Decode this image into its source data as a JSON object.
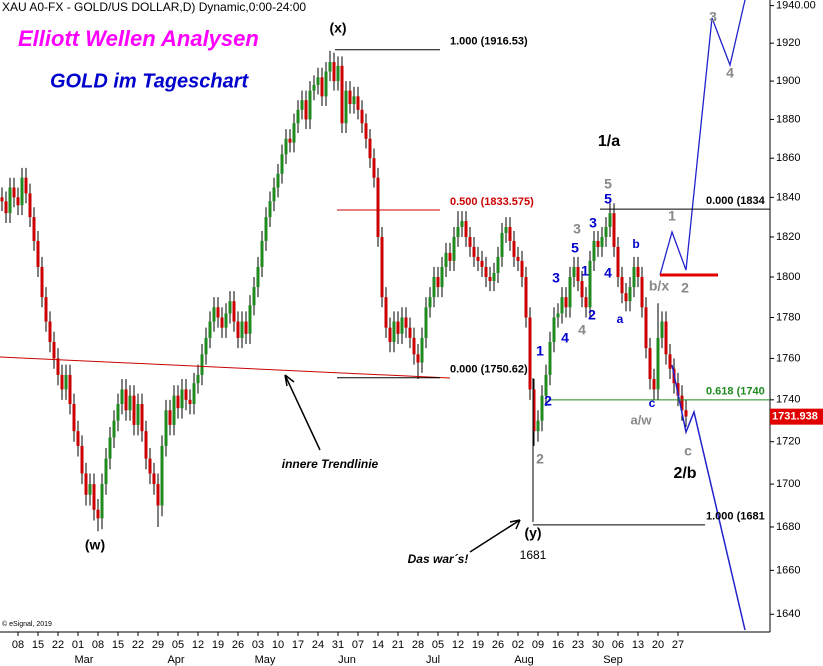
{
  "chart_data": {
    "type": "candlestick",
    "header": "XAU A0-FX - GOLD/US DOLLAR,D) Dynamic,0:00-24:00",
    "title": "Elliott Wellen Analysen",
    "subtitle": "GOLD im Tageschart",
    "copyright": "© eSignal, 2019",
    "log_scale": true,
    "ylim": [
      1632,
      1943
    ],
    "yticks": [
      1640,
      1660,
      1680,
      1700,
      1720,
      1740,
      1760,
      1780,
      1800,
      1820,
      1840,
      1860,
      1880,
      1900,
      1920,
      {
        "value": 1940,
        "label": "1940.00"
      }
    ],
    "x_ticks": [
      "08",
      "15",
      "22",
      "01",
      "08",
      "15",
      "22",
      "29",
      "05",
      "12",
      "19",
      "26",
      "03",
      "10",
      "17",
      "24",
      "31",
      "07",
      "14",
      "21",
      "28",
      "05",
      "12",
      "19",
      "26",
      "02",
      "09",
      "16",
      "23",
      "30",
      "06",
      "13",
      "20",
      "27"
    ],
    "months": [
      "Mar",
      "Apr",
      "May",
      "Jun",
      "Jul",
      "Aug",
      "Sep"
    ],
    "up_color": "#1f8a1f",
    "down_color": "#cc0000",
    "last_price": 1731.938,
    "fib_levels": [
      {
        "label": "1.000 (1916.53)",
        "value": 1916.53,
        "color": "#000000"
      },
      {
        "label": "0.500 (1833.575)",
        "value": 1833.575,
        "color": "#cc0000"
      },
      {
        "label": "0.000 (1750.62)",
        "value": 1750.62,
        "color": "#000000"
      },
      {
        "label": "0.000 (1834",
        "value": 1834,
        "color": "#000000"
      },
      {
        "label": "0.618 (1740",
        "value": 1740,
        "color": "#1f8a1f"
      },
      {
        "label": "1.000 (1681",
        "value": 1681,
        "color": "#000000"
      }
    ],
    "annotations": [
      {
        "text": "(x)",
        "color": "#000000"
      },
      {
        "text": "(w)",
        "color": "#000000"
      },
      {
        "text": "(y)",
        "color": "#000000"
      },
      {
        "text": "1681",
        "color": "#000000"
      },
      {
        "text": "1/a",
        "color": "#000000"
      },
      {
        "text": "5",
        "color": "#888888"
      },
      {
        "text": "5",
        "color": "#0000cc"
      },
      {
        "text": "3",
        "color": "#888888"
      },
      {
        "text": "3",
        "color": "#0000cc"
      },
      {
        "text": "5",
        "color": "#0000cc"
      },
      {
        "text": "1",
        "color": "#0000cc"
      },
      {
        "text": "3",
        "color": "#0000cc"
      },
      {
        "text": "4",
        "color": "#0000cc"
      },
      {
        "text": "b",
        "color": "#0000cc"
      },
      {
        "text": "4",
        "color": "#888888"
      },
      {
        "text": "4",
        "color": "#0000cc"
      },
      {
        "text": "2",
        "color": "#0000cc"
      },
      {
        "text": "a",
        "color": "#0000cc"
      },
      {
        "text": "1",
        "color": "#0000cc"
      },
      {
        "text": "2",
        "color": "#0000cc"
      },
      {
        "text": "2",
        "color": "#888888"
      },
      {
        "text": "b/x",
        "color": "#888888"
      },
      {
        "text": "2",
        "color": "#888888"
      },
      {
        "text": "1",
        "color": "#888888"
      },
      {
        "text": "c",
        "color": "#0000cc"
      },
      {
        "text": "a/w",
        "color": "#888888"
      },
      {
        "text": "c",
        "color": "#888888"
      },
      {
        "text": "2/b",
        "color": "#000000"
      },
      {
        "text": "3",
        "color": "#888888"
      },
      {
        "text": "4",
        "color": "#888888"
      },
      {
        "text": "innere Trendlinie",
        "color": "#000000"
      },
      {
        "text": "Das war´s!",
        "color": "#000000"
      }
    ],
    "candles": [
      [
        1840,
        1845,
        1833,
        1838
      ],
      [
        1838,
        1843,
        1827,
        1832
      ],
      [
        1832,
        1850,
        1827,
        1845
      ],
      [
        1845,
        1850,
        1835,
        1840
      ],
      [
        1840,
        1845,
        1831,
        1836
      ],
      [
        1836,
        1855,
        1831,
        1850
      ],
      [
        1850,
        1855,
        1837,
        1842
      ],
      [
        1842,
        1847,
        1825,
        1830
      ],
      [
        1830,
        1835,
        1813,
        1818
      ],
      [
        1818,
        1823,
        1800,
        1805
      ],
      [
        1805,
        1810,
        1785,
        1790
      ],
      [
        1790,
        1795,
        1773,
        1778
      ],
      [
        1778,
        1783,
        1763,
        1768
      ],
      [
        1768,
        1773,
        1755,
        1760
      ],
      [
        1760,
        1765,
        1747,
        1752
      ],
      [
        1752,
        1757,
        1740,
        1745
      ],
      [
        1745,
        1757,
        1740,
        1752
      ],
      [
        1752,
        1757,
        1733,
        1738
      ],
      [
        1738,
        1743,
        1720,
        1725
      ],
      [
        1725,
        1730,
        1713,
        1718
      ],
      [
        1718,
        1723,
        1700,
        1705
      ],
      [
        1705,
        1710,
        1690,
        1695
      ],
      [
        1695,
        1705,
        1690,
        1700
      ],
      [
        1700,
        1705,
        1683,
        1688
      ],
      [
        1688,
        1693,
        1678,
        1684
      ],
      [
        1684,
        1705,
        1679,
        1700
      ],
      [
        1700,
        1717,
        1695,
        1712
      ],
      [
        1712,
        1727,
        1707,
        1722
      ],
      [
        1722,
        1735,
        1717,
        1730
      ],
      [
        1730,
        1743,
        1725,
        1738
      ],
      [
        1738,
        1750,
        1733,
        1745
      ],
      [
        1745,
        1750,
        1730,
        1735
      ],
      [
        1735,
        1747,
        1730,
        1742
      ],
      [
        1742,
        1747,
        1723,
        1728
      ],
      [
        1728,
        1743,
        1723,
        1738
      ],
      [
        1738,
        1743,
        1720,
        1725
      ],
      [
        1725,
        1730,
        1707,
        1712
      ],
      [
        1712,
        1717,
        1700,
        1705
      ],
      [
        1705,
        1710,
        1695,
        1700
      ],
      [
        1700,
        1705,
        1680,
        1690
      ],
      [
        1690,
        1723,
        1685,
        1718
      ],
      [
        1718,
        1740,
        1713,
        1735
      ],
      [
        1735,
        1740,
        1723,
        1728
      ],
      [
        1728,
        1747,
        1723,
        1742
      ],
      [
        1742,
        1747,
        1731,
        1736
      ],
      [
        1736,
        1750,
        1731,
        1745
      ],
      [
        1745,
        1750,
        1735,
        1740
      ],
      [
        1740,
        1745,
        1733,
        1738
      ],
      [
        1738,
        1753,
        1733,
        1748
      ],
      [
        1748,
        1757,
        1743,
        1752
      ],
      [
        1752,
        1767,
        1747,
        1762
      ],
      [
        1762,
        1775,
        1757,
        1770
      ],
      [
        1770,
        1783,
        1765,
        1778
      ],
      [
        1778,
        1790,
        1773,
        1785
      ],
      [
        1785,
        1790,
        1775,
        1780
      ],
      [
        1780,
        1785,
        1770,
        1775
      ],
      [
        1775,
        1787,
        1770,
        1782
      ],
      [
        1782,
        1793,
        1777,
        1788
      ],
      [
        1788,
        1793,
        1773,
        1778
      ],
      [
        1778,
        1783,
        1765,
        1770
      ],
      [
        1770,
        1783,
        1765,
        1778
      ],
      [
        1778,
        1783,
        1767,
        1772
      ],
      [
        1772,
        1791,
        1767,
        1786
      ],
      [
        1786,
        1800,
        1781,
        1795
      ],
      [
        1795,
        1810,
        1790,
        1805
      ],
      [
        1805,
        1823,
        1800,
        1818
      ],
      [
        1818,
        1835,
        1813,
        1830
      ],
      [
        1830,
        1843,
        1825,
        1838
      ],
      [
        1838,
        1850,
        1833,
        1845
      ],
      [
        1845,
        1857,
        1840,
        1852
      ],
      [
        1852,
        1867,
        1847,
        1862
      ],
      [
        1862,
        1875,
        1857,
        1870
      ],
      [
        1870,
        1875,
        1863,
        1868
      ],
      [
        1868,
        1883,
        1863,
        1878
      ],
      [
        1878,
        1890,
        1873,
        1885
      ],
      [
        1885,
        1895,
        1880,
        1890
      ],
      [
        1890,
        1895,
        1875,
        1880
      ],
      [
        1880,
        1900,
        1875,
        1895
      ],
      [
        1895,
        1903,
        1890,
        1898
      ],
      [
        1898,
        1907,
        1893,
        1902
      ],
      [
        1902,
        1907,
        1887,
        1892
      ],
      [
        1892,
        1910,
        1887,
        1905
      ],
      [
        1905,
        1916,
        1900,
        1910
      ],
      [
        1910,
        1915,
        1895,
        1900
      ],
      [
        1900,
        1913,
        1895,
        1908
      ],
      [
        1908,
        1913,
        1873,
        1878
      ],
      [
        1878,
        1900,
        1873,
        1895
      ],
      [
        1895,
        1900,
        1883,
        1888
      ],
      [
        1888,
        1897,
        1883,
        1892
      ],
      [
        1892,
        1897,
        1880,
        1885
      ],
      [
        1885,
        1890,
        1873,
        1878
      ],
      [
        1878,
        1883,
        1865,
        1870
      ],
      [
        1870,
        1875,
        1855,
        1860
      ],
      [
        1860,
        1865,
        1845,
        1850
      ],
      [
        1850,
        1855,
        1815,
        1820
      ],
      [
        1820,
        1825,
        1785,
        1790
      ],
      [
        1790,
        1795,
        1770,
        1775
      ],
      [
        1775,
        1780,
        1763,
        1768
      ],
      [
        1768,
        1783,
        1763,
        1778
      ],
      [
        1778,
        1783,
        1767,
        1772
      ],
      [
        1772,
        1785,
        1767,
        1780
      ],
      [
        1780,
        1785,
        1770,
        1775
      ],
      [
        1775,
        1780,
        1765,
        1770
      ],
      [
        1770,
        1775,
        1757,
        1762
      ],
      [
        1762,
        1767,
        1750,
        1758
      ],
      [
        1758,
        1775,
        1753,
        1770
      ],
      [
        1770,
        1790,
        1765,
        1785
      ],
      [
        1785,
        1795,
        1780,
        1790
      ],
      [
        1790,
        1805,
        1785,
        1800
      ],
      [
        1800,
        1805,
        1790,
        1795
      ],
      [
        1795,
        1810,
        1790,
        1805
      ],
      [
        1805,
        1817,
        1800,
        1812
      ],
      [
        1812,
        1817,
        1803,
        1808
      ],
      [
        1808,
        1825,
        1803,
        1820
      ],
      [
        1820,
        1833,
        1815,
        1825
      ],
      [
        1825,
        1833,
        1820,
        1828
      ],
      [
        1828,
        1833,
        1815,
        1820
      ],
      [
        1820,
        1825,
        1810,
        1815
      ],
      [
        1815,
        1820,
        1805,
        1810
      ],
      [
        1810,
        1815,
        1803,
        1808
      ],
      [
        1808,
        1813,
        1800,
        1805
      ],
      [
        1805,
        1810,
        1795,
        1800
      ],
      [
        1800,
        1805,
        1793,
        1798
      ],
      [
        1798,
        1807,
        1793,
        1802
      ],
      [
        1802,
        1815,
        1797,
        1810
      ],
      [
        1810,
        1827,
        1805,
        1822
      ],
      [
        1822,
        1830,
        1817,
        1825
      ],
      [
        1825,
        1830,
        1813,
        1818
      ],
      [
        1818,
        1823,
        1805,
        1810
      ],
      [
        1810,
        1815,
        1803,
        1808
      ],
      [
        1808,
        1813,
        1795,
        1800
      ],
      [
        1800,
        1805,
        1775,
        1780
      ],
      [
        1780,
        1785,
        1740,
        1745
      ],
      [
        1745,
        1750,
        1718,
        1725
      ],
      [
        1725,
        1735,
        1720,
        1730
      ],
      [
        1730,
        1747,
        1725,
        1742
      ],
      [
        1742,
        1757,
        1737,
        1752
      ],
      [
        1752,
        1773,
        1747,
        1768
      ],
      [
        1768,
        1785,
        1763,
        1780
      ],
      [
        1780,
        1787,
        1775,
        1782
      ],
      [
        1782,
        1795,
        1777,
        1790
      ],
      [
        1790,
        1795,
        1780,
        1785
      ],
      [
        1785,
        1805,
        1780,
        1800
      ],
      [
        1800,
        1810,
        1795,
        1805
      ],
      [
        1805,
        1810,
        1793,
        1798
      ],
      [
        1798,
        1803,
        1785,
        1790
      ],
      [
        1790,
        1795,
        1780,
        1785
      ],
      [
        1785,
        1813,
        1780,
        1808
      ],
      [
        1808,
        1823,
        1803,
        1818
      ],
      [
        1818,
        1823,
        1810,
        1815
      ],
      [
        1815,
        1825,
        1810,
        1820
      ],
      [
        1820,
        1830,
        1815,
        1825
      ],
      [
        1825,
        1837,
        1820,
        1832
      ],
      [
        1832,
        1837,
        1810,
        1815
      ],
      [
        1815,
        1820,
        1795,
        1800
      ],
      [
        1800,
        1805,
        1787,
        1792
      ],
      [
        1792,
        1797,
        1783,
        1788
      ],
      [
        1788,
        1800,
        1783,
        1795
      ],
      [
        1795,
        1810,
        1790,
        1805
      ],
      [
        1805,
        1810,
        1795,
        1800
      ],
      [
        1800,
        1805,
        1780,
        1785
      ],
      [
        1785,
        1790,
        1760,
        1765
      ],
      [
        1765,
        1770,
        1745,
        1750
      ],
      [
        1750,
        1755,
        1740,
        1745
      ],
      [
        1745,
        1787,
        1740,
        1770
      ],
      [
        1770,
        1783,
        1765,
        1778
      ],
      [
        1778,
        1783,
        1757,
        1762
      ],
      [
        1762,
        1767,
        1750,
        1755
      ],
      [
        1755,
        1760,
        1743,
        1748
      ],
      [
        1748,
        1753,
        1737,
        1742
      ],
      [
        1742,
        1747,
        1730,
        1735
      ],
      [
        1735,
        1740,
        1727,
        1732
      ]
    ]
  }
}
